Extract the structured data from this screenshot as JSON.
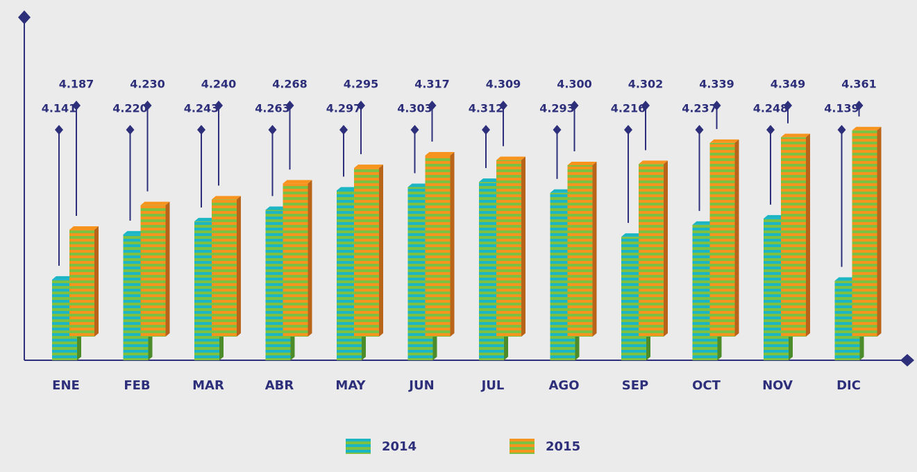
{
  "chart_data": {
    "type": "bar",
    "categories": [
      "ENE",
      "FEB",
      "MAR",
      "ABR",
      "MAY",
      "JUN",
      "JUL",
      "AGO",
      "SEP",
      "OCT",
      "NOV",
      "DIC"
    ],
    "series": [
      {
        "name": "2014",
        "color": "#1bb5c4",
        "values": [
          4.141,
          4.22,
          4.243,
          4.263,
          4.297,
          4.303,
          4.312,
          4.293,
          4.216,
          4.237,
          4.248,
          4.139
        ],
        "value_labels": [
          "4.141",
          "4.220",
          "4.243",
          "4.263",
          "4.297",
          "4.303",
          "4.312",
          "4.293",
          "4.216",
          "4.237",
          "4.248",
          "4.139"
        ]
      },
      {
        "name": "2015",
        "color": "#f7941d",
        "values": [
          4.187,
          4.23,
          4.24,
          4.268,
          4.295,
          4.317,
          4.309,
          4.3,
          4.302,
          4.339,
          4.349,
          4.361
        ],
        "value_labels": [
          "4.187",
          "4.230",
          "4.240",
          "4.268",
          "4.295",
          "4.317",
          "4.309",
          "4.300",
          "4.302",
          "4.339",
          "4.349",
          "4.361"
        ]
      }
    ],
    "ylim": [
      4.0,
      4.6
    ]
  }
}
